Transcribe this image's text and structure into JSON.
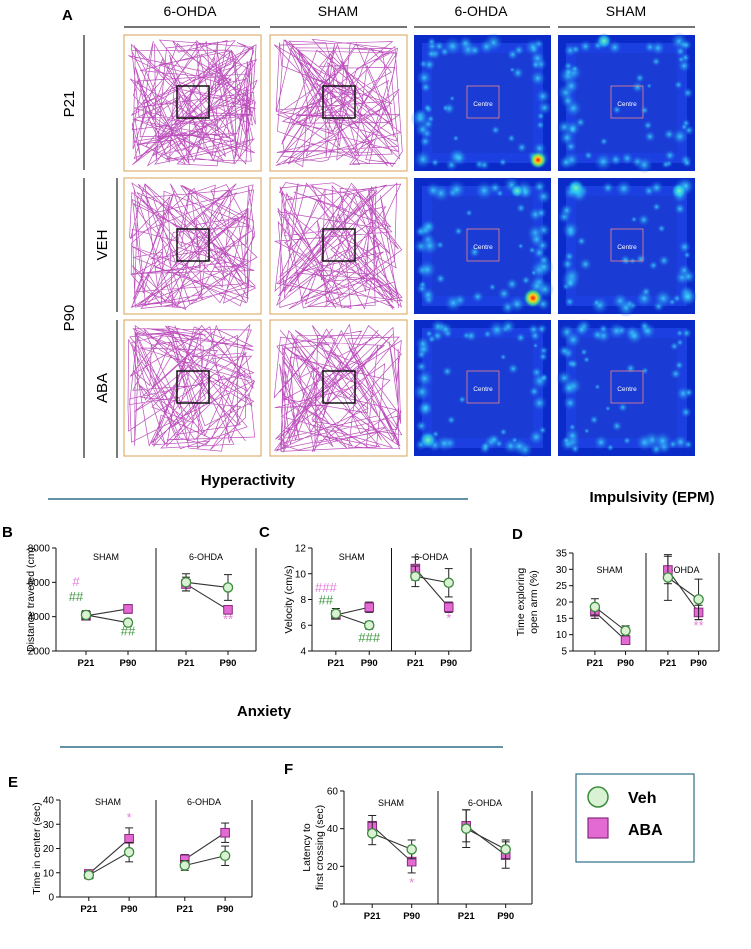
{
  "panel_a": {
    "letter": "A",
    "col_headers": [
      "6-OHDA",
      "SHAM",
      "6-OHDA",
      "SHAM"
    ],
    "row_labels": {
      "p21": "P21",
      "p90": "P90",
      "veh": "VEH",
      "aba": "ABA"
    },
    "centre_label": "Centre"
  },
  "sections": {
    "hyperactivity": "Hyperactivity",
    "impulsivity": "Impulsivity (EPM)",
    "anxiety": "Anxiety"
  },
  "legend": {
    "veh": "Veh",
    "aba": "ABA"
  },
  "colors": {
    "veh_fill": "#d9f2d3",
    "veh_stroke": "#3c8a3c",
    "aba_fill": "#e26ad2",
    "aba_stroke": "#8a2a80",
    "sig_pink": "#e37fd8",
    "sig_green": "#3f9a3f",
    "track": "#b030b0",
    "heat_bg": "#1a3bd4",
    "section_line": "#2e6f86"
  },
  "chart_data": [
    {
      "id": "B",
      "type": "line",
      "letter": "B",
      "ylabel": "Distance traveled (cm)",
      "ylim": [
        2000,
        8000
      ],
      "yticks": [
        "2000",
        "4000",
        "6000",
        "8000"
      ],
      "groups": [
        "SHAM",
        "6-OHDA"
      ],
      "categories": [
        "P21",
        "P90"
      ],
      "series": [
        {
          "name": "Veh",
          "SHAM": [
            4100,
            3650
          ],
          "SHAM_err": [
            250,
            200
          ],
          "6-OHDA": [
            6000,
            5700
          ],
          "6-OHDA_err": [
            500,
            750
          ]
        },
        {
          "name": "ABA",
          "SHAM": [
            4050,
            4450
          ],
          "SHAM_err": [
            200,
            250
          ],
          "6-OHDA": [
            5900,
            4400
          ],
          "6-OHDA_err": [
            400,
            250
          ]
        }
      ],
      "annotations": [
        {
          "text": "#",
          "color": "pink",
          "group": "SHAM",
          "cat": 0,
          "y": 5800
        },
        {
          "text": "##",
          "color": "green",
          "group": "SHAM",
          "cat": 0,
          "y": 4900
        },
        {
          "text": "##",
          "color": "green",
          "group": "SHAM",
          "cat": 1,
          "y": 2900
        },
        {
          "text": "**",
          "color": "pink",
          "group": "6-OHDA",
          "cat": 1,
          "y": 3600
        }
      ]
    },
    {
      "id": "C",
      "type": "line",
      "letter": "C",
      "ylabel": "Velocity (cm/s)",
      "ylim": [
        4,
        12
      ],
      "yticks": [
        "4",
        "6",
        "8",
        "10",
        "12"
      ],
      "groups": [
        "SHAM",
        "6-OHDA"
      ],
      "categories": [
        "P21",
        "P90"
      ],
      "series": [
        {
          "name": "Veh",
          "SHAM": [
            6.9,
            6.0
          ],
          "SHAM_err": [
            0.4,
            0.3
          ],
          "6-OHDA": [
            9.8,
            9.3
          ],
          "6-OHDA_err": [
            0.8,
            1.1
          ]
        },
        {
          "name": "ABA",
          "SHAM": [
            6.8,
            7.4
          ],
          "SHAM_err": [
            0.3,
            0.4
          ],
          "6-OHDA": [
            10.4,
            7.4
          ],
          "6-OHDA_err": [
            0.9,
            0.4
          ]
        }
      ],
      "annotations": [
        {
          "text": "###",
          "color": "pink",
          "group": "SHAM",
          "cat": 0,
          "y": 8.6
        },
        {
          "text": "##",
          "color": "green",
          "group": "SHAM",
          "cat": 0,
          "y": 7.6
        },
        {
          "text": "###",
          "color": "green",
          "group": "SHAM",
          "cat": 1,
          "y": 4.7
        },
        {
          "text": "*",
          "color": "pink",
          "group": "6-OHDA",
          "cat": 1,
          "y": 6.2
        }
      ]
    },
    {
      "id": "D",
      "type": "line",
      "letter": "D",
      "ylabel": "Time exploring open arm (%)",
      "ylim": [
        5,
        35
      ],
      "yticks": [
        "5",
        "10",
        "15",
        "20",
        "25",
        "30",
        "35"
      ],
      "groups": [
        "SHAM",
        "6-OHDA"
      ],
      "categories": [
        "P21",
        "P90"
      ],
      "series": [
        {
          "name": "Veh",
          "SHAM": [
            18.5,
            11.2
          ],
          "SHAM_err": [
            2.5,
            1.5
          ],
          "6-OHDA": [
            27.5,
            20.8
          ],
          "6-OHDA_err": [
            7.0,
            6.2
          ]
        },
        {
          "name": "ABA",
          "SHAM": [
            17.0,
            8.3
          ],
          "SHAM_err": [
            2.0,
            1.2
          ],
          "6-OHDA": [
            29.8,
            16.8
          ],
          "6-OHDA_err": [
            4.2,
            2.2
          ]
        }
      ],
      "annotations": [
        {
          "text": "**",
          "color": "pink",
          "group": "6-OHDA",
          "cat": 1,
          "y": 11.5
        }
      ]
    },
    {
      "id": "E",
      "type": "line",
      "letter": "E",
      "ylabel": "Time in center (sec)",
      "ylim": [
        0,
        40
      ],
      "yticks": [
        "0",
        "10",
        "20",
        "30",
        "40"
      ],
      "groups": [
        "SHAM",
        "6-OHDA"
      ],
      "categories": [
        "P21",
        "P90"
      ],
      "series": [
        {
          "name": "Veh",
          "SHAM": [
            9.0,
            18.5
          ],
          "SHAM_err": [
            1.5,
            4.0
          ],
          "6-OHDA": [
            13.0,
            17.0
          ],
          "6-OHDA_err": [
            2.0,
            4.0
          ]
        },
        {
          "name": "ABA",
          "SHAM": [
            9.5,
            24.0
          ],
          "SHAM_err": [
            1.5,
            4.5
          ],
          "6-OHDA": [
            15.5,
            26.5
          ],
          "6-OHDA_err": [
            2.0,
            4.0
          ]
        }
      ],
      "annotations": [
        {
          "text": "*",
          "color": "pink",
          "group": "SHAM",
          "cat": 1,
          "y": 31.0
        }
      ]
    },
    {
      "id": "F",
      "type": "line",
      "letter": "F",
      "ylabel": "Latency to first crossing (sec)",
      "ylim": [
        0,
        60
      ],
      "yticks": [
        "0",
        "20",
        "40",
        "60"
      ],
      "groups": [
        "SHAM",
        "6-OHDA"
      ],
      "categories": [
        "P21",
        "P90"
      ],
      "series": [
        {
          "name": "Veh",
          "SHAM": [
            37.5,
            29.0
          ],
          "SHAM_err": [
            6.0,
            5.0
          ],
          "6-OHDA": [
            40.0,
            29.0
          ],
          "6-OHDA_err": [
            10.0,
            5.0
          ]
        },
        {
          "name": "ABA",
          "SHAM": [
            41.5,
            22.5
          ],
          "SHAM_err": [
            5.5,
            6.0
          ],
          "6-OHDA": [
            41.5,
            26.0
          ],
          "6-OHDA_err": [
            8.5,
            7.0
          ]
        }
      ],
      "annotations": [
        {
          "text": "*",
          "color": "pink",
          "group": "SHAM",
          "cat": 1,
          "y": 9.0
        }
      ]
    }
  ]
}
